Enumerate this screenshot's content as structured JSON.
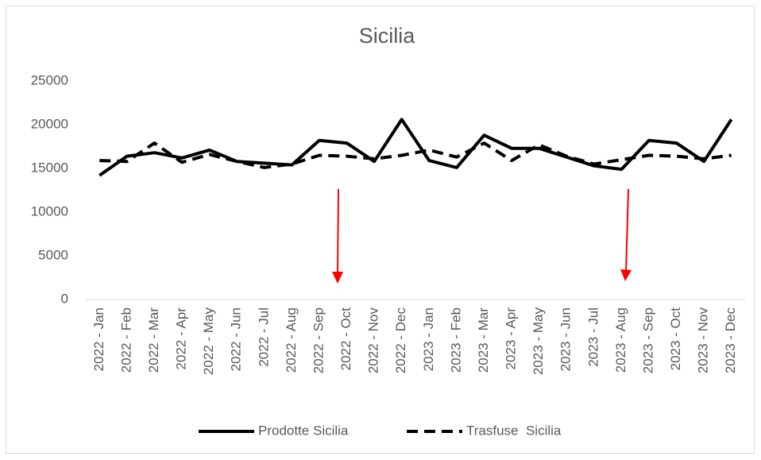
{
  "chart_data": {
    "type": "line",
    "title": "Sicilia",
    "categories": [
      "2022 - Jan",
      "2022 - Feb",
      "2022 - Mar",
      "2022 - Apr",
      "2022 - May",
      "2022 - Jun",
      "2022 - Jul",
      "2022 - Aug",
      "2022 - Sep",
      "2022 - Oct",
      "2022 - Nov",
      "2022 - Dec",
      "2023 - Jan",
      "2023 - Feb",
      "2023 - Mar",
      "2023 - Apr",
      "2023 - May",
      "2023 - Jun",
      "2023 - Jul",
      "2023 - Aug",
      "2023 - Sep",
      "2023 - Oct",
      "2023 - Nov",
      "2023 - Dec"
    ],
    "series": [
      {
        "name": "Prodotte Sicilia",
        "color": "#000000",
        "dash": "solid",
        "values": [
          14200,
          16400,
          16800,
          16200,
          17100,
          15800,
          15600,
          15400,
          18200,
          17900,
          15800,
          20600,
          15900,
          15100,
          18800,
          17300,
          17300,
          16300,
          15300,
          14900,
          18200,
          17900,
          15800,
          20600
        ]
      },
      {
        "name": "Trasfuse  Sicilia",
        "color": "#000000",
        "dash": "dashed",
        "values": [
          15900,
          15800,
          17900,
          15700,
          16600,
          15800,
          15100,
          15500,
          16500,
          16400,
          16100,
          16500,
          17100,
          16300,
          17900,
          15900,
          17700,
          16400,
          15500,
          16000,
          16500,
          16400,
          16100,
          16500
        ]
      }
    ],
    "ylim": [
      0,
      25000
    ],
    "yticks": [
      0,
      5000,
      10000,
      15000,
      20000,
      25000
    ],
    "grid": false,
    "legend": "bottom"
  }
}
